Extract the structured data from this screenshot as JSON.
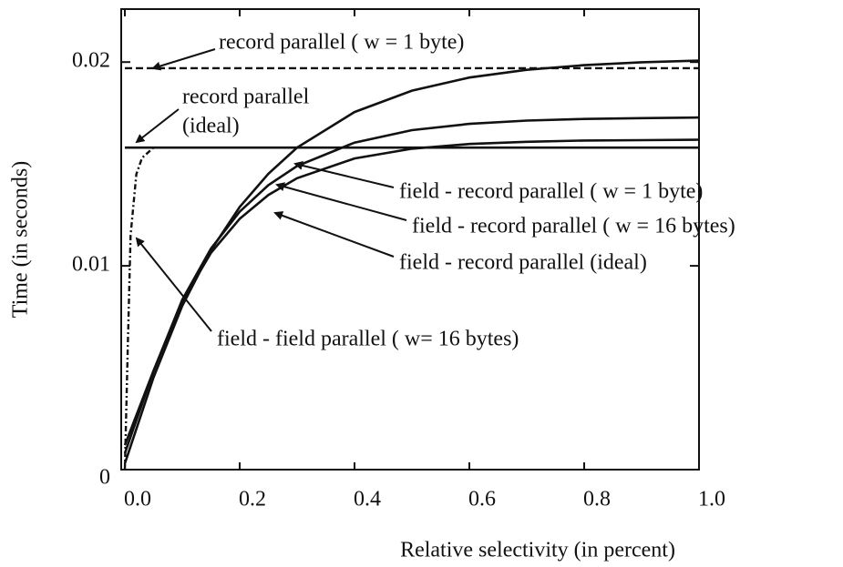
{
  "chart_data": {
    "type": "line",
    "xlabel": "Relative selectivity (in percent)",
    "ylabel": "Time (in seconds)",
    "xlim": [
      0,
      1
    ],
    "ylim": [
      0,
      0.0226
    ],
    "xticks": [
      {
        "value": 0,
        "label": "0.0"
      },
      0.2,
      0.4,
      0.6,
      0.8,
      {
        "value": 1,
        "label": "1.0"
      }
    ],
    "yticks": [
      0,
      0.01,
      0.02
    ],
    "series": [
      {
        "color": "#111",
        "style": "dashed",
        "x": [
          0,
          1
        ],
        "values": [
          0.0197,
          0.0197
        ]
      },
      {
        "color": "#111",
        "style": "solid",
        "x": [
          0,
          1
        ],
        "values": [
          0.0158,
          0.0158
        ]
      },
      {
        "color": "#111",
        "style": "solid",
        "x": [
          0,
          0.05,
          0.1,
          0.15,
          0.2,
          0.25,
          0.3,
          0.4,
          0.5,
          0.6,
          0.7,
          0.8,
          0.9,
          1.0
        ],
        "values": [
          0.0003,
          0.00453,
          0.00804,
          0.01077,
          0.01289,
          0.01452,
          0.0158,
          0.01755,
          0.0186,
          0.01924,
          0.01962,
          0.01985,
          0.01999,
          0.02007
        ]
      },
      {
        "color": "#111",
        "style": "solid",
        "x": [
          0,
          0.05,
          0.1,
          0.15,
          0.2,
          0.25,
          0.3,
          0.4,
          0.5,
          0.6,
          0.7,
          0.8,
          0.9,
          1.0
        ],
        "values": [
          0.0008,
          0.00484,
          0.00834,
          0.01085,
          0.01266,
          0.01396,
          0.0149,
          0.01605,
          0.01666,
          0.01697,
          0.01713,
          0.01721,
          0.01725,
          0.01728
        ]
      },
      {
        "color": "#111",
        "style": "solid",
        "x": [
          0,
          0.05,
          0.1,
          0.15,
          0.2,
          0.25,
          0.3,
          0.4,
          0.5,
          0.6,
          0.7,
          0.8,
          0.9,
          1.0
        ],
        "values": [
          0.0012,
          0.00486,
          0.00826,
          0.01064,
          0.01231,
          0.01348,
          0.0143,
          0.01527,
          0.01575,
          0.01598,
          0.01609,
          0.01615,
          0.01617,
          0.01619
        ]
      },
      {
        "color": "#111",
        "style": "dashdot",
        "x": [
          0,
          0.005,
          0.01,
          0.02,
          0.03,
          0.05
        ],
        "values": [
          0,
          0.006,
          0.0115,
          0.0145,
          0.0153,
          0.0158
        ]
      }
    ],
    "annotations": [
      [
        "record parallel ( w = 1 byte)"
      ],
      [
        "record parallel",
        "(ideal)"
      ],
      [
        "field - record parallel ( w = 1 byte)"
      ],
      [
        "field - record parallel ( w = 16 bytes)"
      ],
      [
        "field - record parallel (ideal)"
      ],
      [
        "field - field parallel ( w= 16 bytes)"
      ]
    ]
  }
}
